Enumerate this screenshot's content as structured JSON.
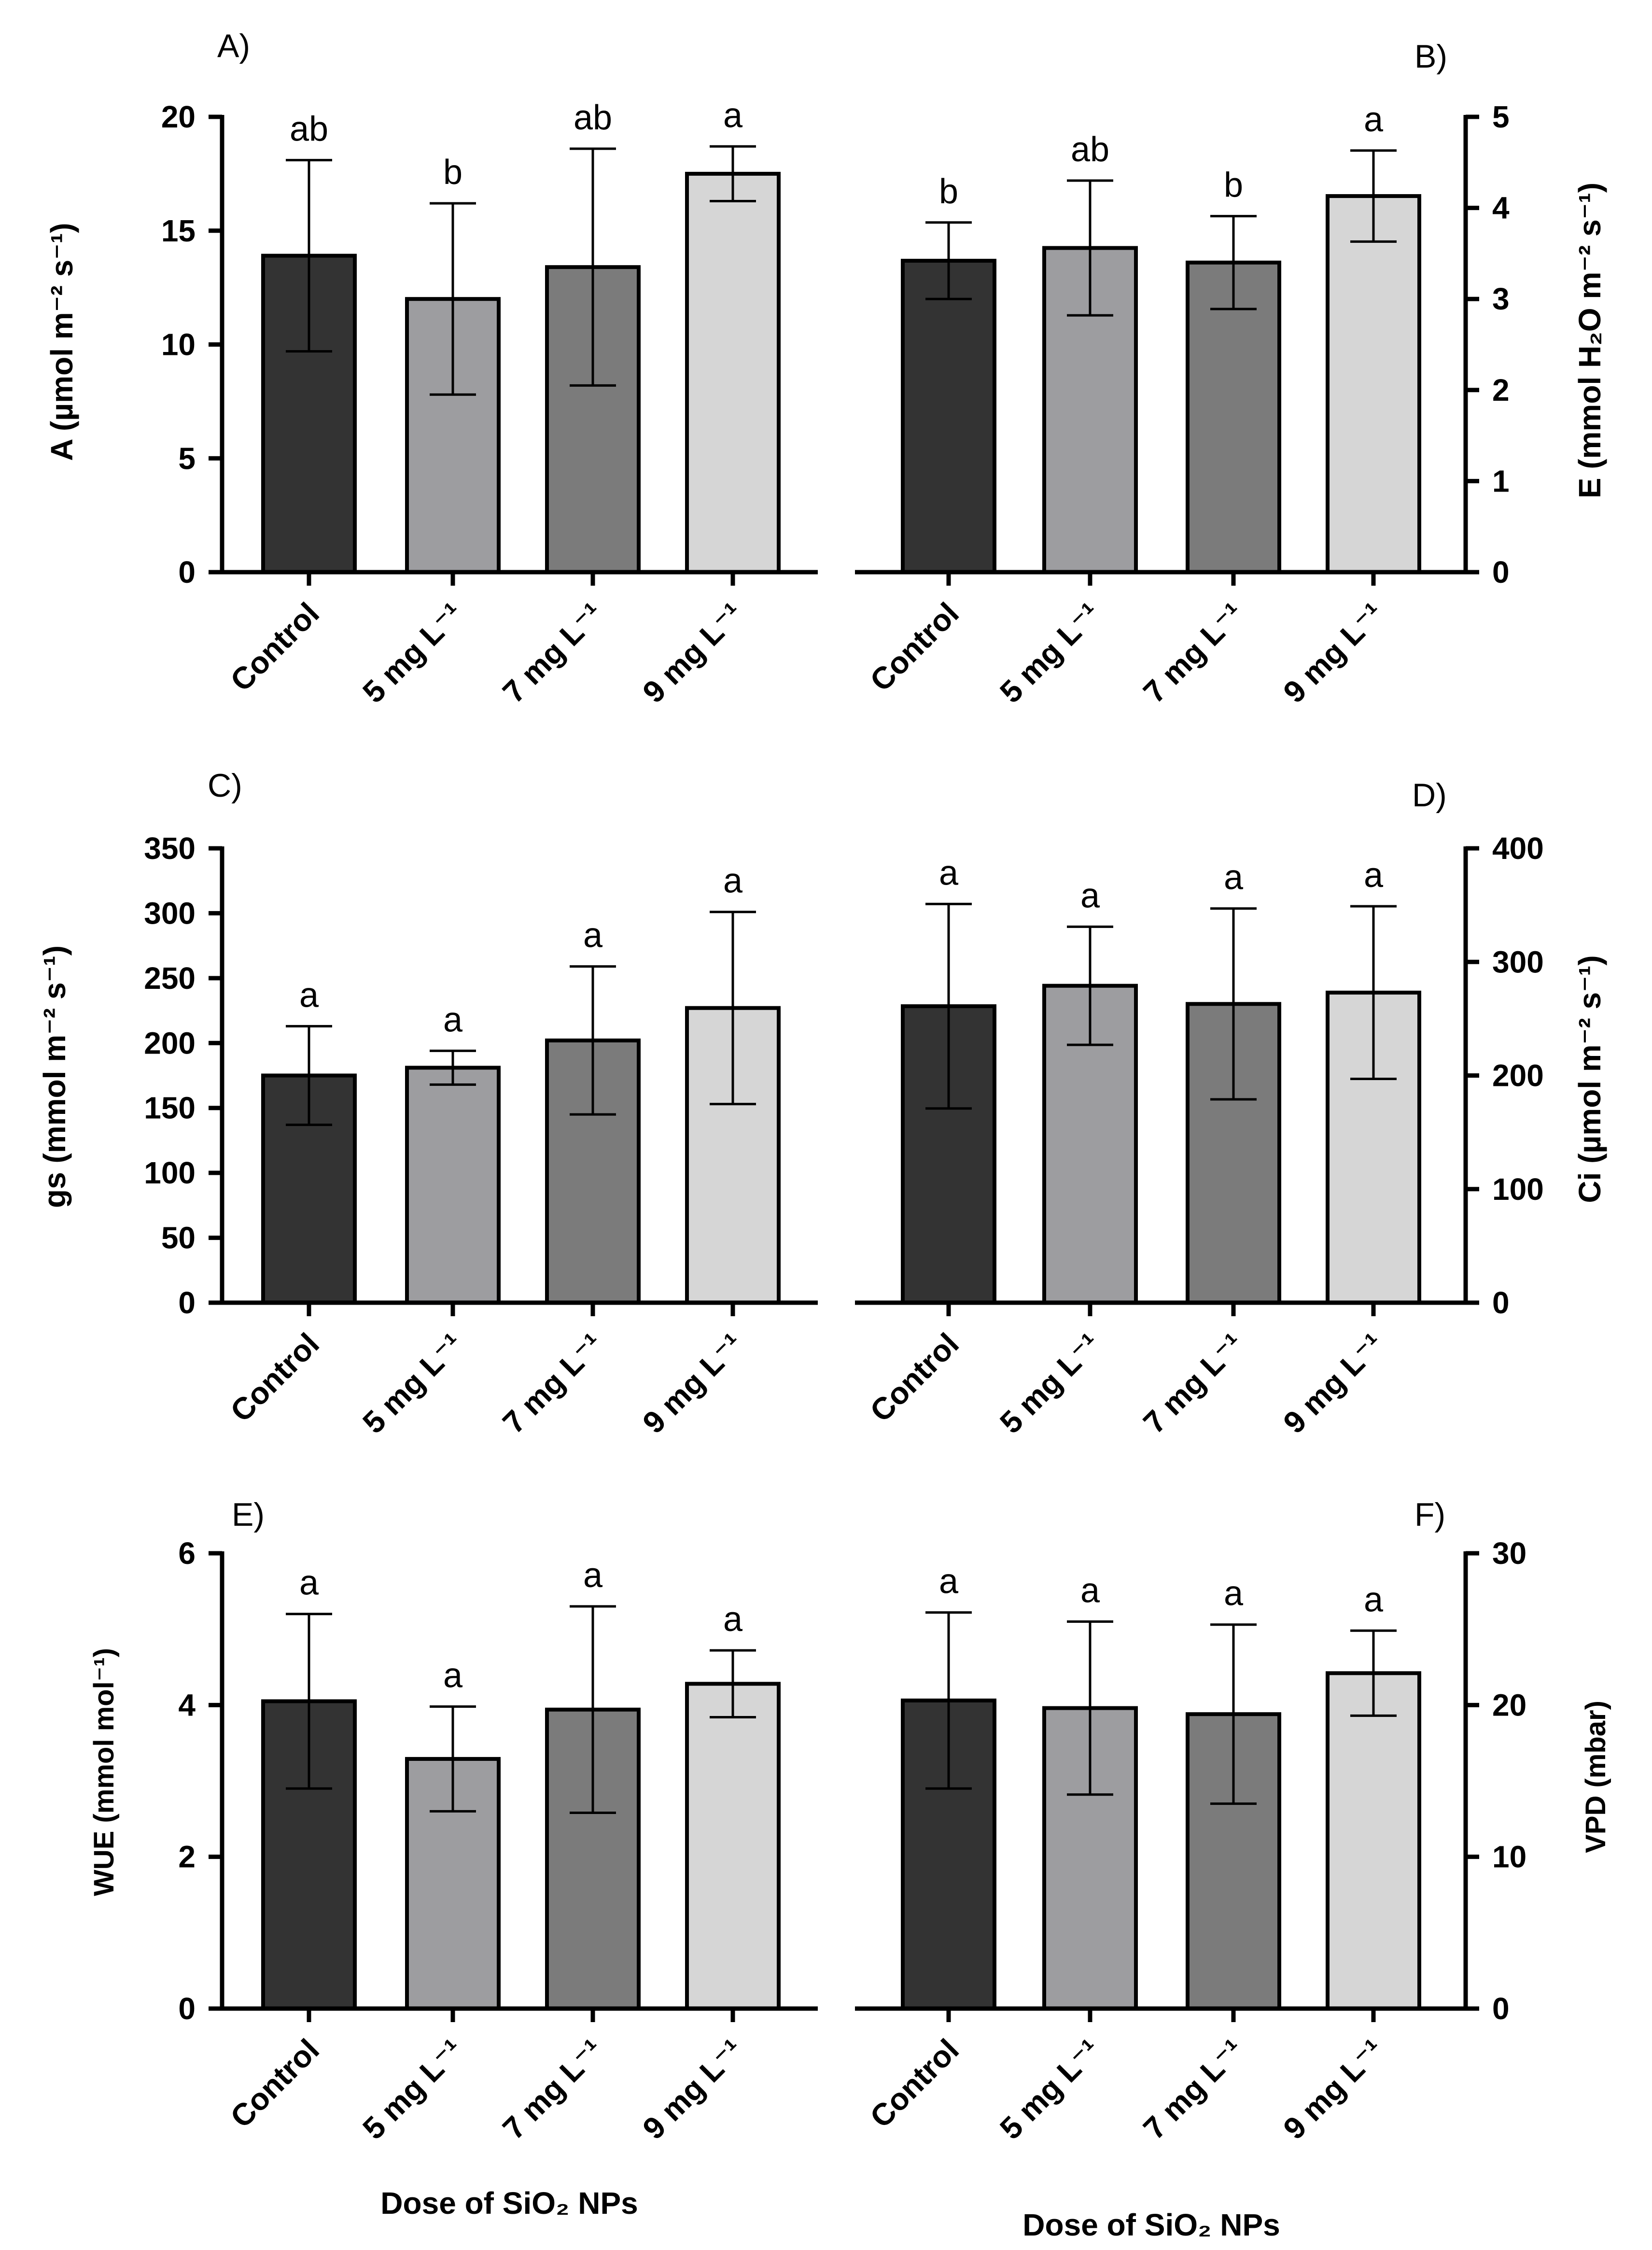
{
  "figure": {
    "x_axis_title": "Dose of SiO₂ NPs"
  },
  "categories": [
    "Control",
    "5 mg L⁻¹",
    "7 mg L⁻¹",
    "9 mg L⁻¹"
  ],
  "bar_colors": [
    "#333333",
    "#9d9da0",
    "#7b7b7b",
    "#d6d6d6"
  ],
  "chart_data": [
    {
      "id": "A",
      "panel_label": "A)",
      "type": "bar",
      "ylabel": "A (µmol m⁻² s⁻¹)",
      "ylim": [
        0,
        20
      ],
      "yticks": [
        0,
        5,
        10,
        15,
        20
      ],
      "axis_side": "left",
      "categories": [
        "Control",
        "5 mg L⁻¹",
        "7 mg L⁻¹",
        "9 mg L⁻¹"
      ],
      "values": [
        13.9,
        12.0,
        13.4,
        17.5
      ],
      "errors": [
        4.2,
        4.2,
        5.2,
        1.2
      ],
      "letters": [
        "ab",
        "b",
        "ab",
        "a"
      ]
    },
    {
      "id": "B",
      "panel_label": "B)",
      "type": "bar",
      "ylabel": "E (mmol H₂O m⁻² s⁻¹)",
      "ylim": [
        0,
        5
      ],
      "yticks": [
        0,
        1,
        2,
        3,
        4,
        5
      ],
      "axis_side": "right",
      "categories": [
        "Control",
        "5 mg L⁻¹",
        "7 mg L⁻¹",
        "9 mg L⁻¹"
      ],
      "values": [
        3.42,
        3.56,
        3.4,
        4.13
      ],
      "errors": [
        0.42,
        0.74,
        0.51,
        0.5
      ],
      "letters": [
        "b",
        "ab",
        "b",
        "a"
      ]
    },
    {
      "id": "C",
      "panel_label": "C)",
      "type": "bar",
      "ylabel": "gs (mmol m⁻² s⁻¹)",
      "ylim": [
        0,
        350
      ],
      "yticks": [
        0,
        50,
        100,
        150,
        200,
        250,
        300,
        350
      ],
      "axis_side": "left",
      "categories": [
        "Control",
        "5 mg L⁻¹",
        "7 mg L⁻¹",
        "9 mg L⁻¹"
      ],
      "values": [
        175,
        181,
        202,
        227
      ],
      "errors": [
        38,
        13,
        57,
        74
      ],
      "letters": [
        "a",
        "a",
        "a",
        "a"
      ]
    },
    {
      "id": "D",
      "panel_label": "D)",
      "type": "bar",
      "ylabel": "Ci (µmol m⁻² s⁻¹)",
      "ylim": [
        0,
        400
      ],
      "yticks": [
        0,
        100,
        200,
        300,
        400
      ],
      "axis_side": "right",
      "categories": [
        "Control",
        "5 mg L⁻¹",
        "7 mg L⁻¹",
        "9 mg L⁻¹"
      ],
      "values": [
        261,
        279,
        263,
        273
      ],
      "errors": [
        90,
        52,
        84,
        76
      ],
      "letters": [
        "a",
        "a",
        "a",
        "a"
      ]
    },
    {
      "id": "E",
      "panel_label": "E)",
      "type": "bar",
      "ylabel": "WUE (mmol mol⁻¹)",
      "ylim": [
        0,
        6
      ],
      "yticks": [
        0,
        2,
        4,
        6
      ],
      "axis_side": "left",
      "categories": [
        "Control",
        "5 mg L⁻¹",
        "7 mg L⁻¹",
        "9 mg L⁻¹"
      ],
      "values": [
        4.05,
        3.29,
        3.94,
        4.28
      ],
      "errors": [
        1.15,
        0.69,
        1.36,
        0.44
      ],
      "letters": [
        "a",
        "a",
        "a",
        "a"
      ]
    },
    {
      "id": "F",
      "panel_label": "F)",
      "type": "bar",
      "ylabel": "VPD (mbar)",
      "ylim": [
        0,
        30
      ],
      "yticks": [
        0,
        10,
        20,
        30
      ],
      "axis_side": "right",
      "categories": [
        "Control",
        "5 mg L⁻¹",
        "7 mg L⁻¹",
        "9 mg L⁻¹"
      ],
      "values": [
        20.3,
        19.8,
        19.4,
        22.1
      ],
      "errors": [
        5.8,
        5.7,
        5.9,
        2.8
      ],
      "letters": [
        "a",
        "a",
        "a",
        "a"
      ]
    }
  ]
}
